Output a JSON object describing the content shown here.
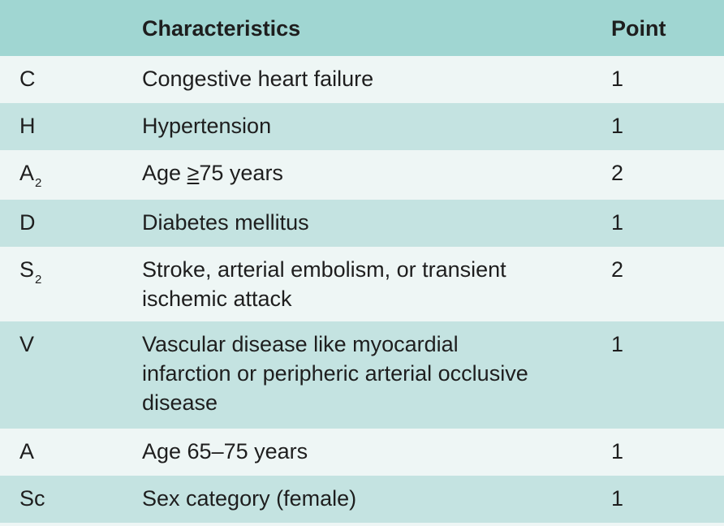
{
  "table": {
    "headers": {
      "col1": "",
      "col2": "Characteristics",
      "col3": "Point"
    },
    "rows": [
      {
        "letter": "C",
        "sub": "",
        "text": "Congestive heart failure",
        "point": "1"
      },
      {
        "letter": "H",
        "sub": "",
        "text": "Hypertension",
        "point": "1"
      },
      {
        "letter": "A",
        "sub": "2",
        "text_pre": "Age ",
        "text_symbol": "≥",
        "text_post": "75 years",
        "point": "2"
      },
      {
        "letter": "D",
        "sub": "",
        "text": "Diabetes mellitus",
        "point": "1"
      },
      {
        "letter": "S",
        "sub": "2",
        "text_line1": "Stroke, arterial embolism, or transient",
        "text_line2": "ischemic attack",
        "point": "2"
      },
      {
        "letter": "V",
        "sub": "",
        "text_line1": "Vascular disease like myocardial",
        "text_line2": "infarction or peripheric arterial occlusive",
        "text_line3": "disease",
        "point": "1"
      },
      {
        "letter": "A",
        "sub": "",
        "text": "Age 65–75 years",
        "point": "1"
      },
      {
        "letter": "Sc",
        "sub": "",
        "text": "Sex category (female)",
        "point": "1"
      }
    ]
  }
}
